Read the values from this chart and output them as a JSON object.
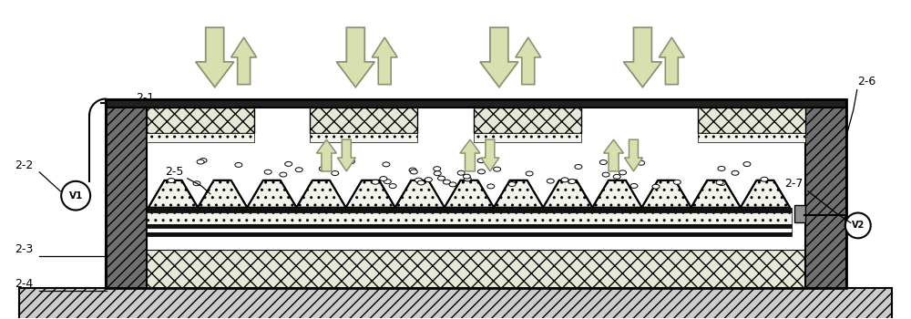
{
  "bg_color": "#ffffff",
  "fig_width": 10.0,
  "fig_height": 3.5,
  "arrow_fill": "#d8e0b0",
  "arrow_edge": "#909070",
  "hatch_wall_color": "#606060",
  "cross_hatch_color": "#e8e8d8",
  "dot_fill_color": "#f4f4ec",
  "base_hatch_color": "#c8c8c8",
  "black": "#000000",
  "white": "#ffffff",
  "dark_strip": "#1a1a1a",
  "gray_contact": "#888888",
  "label_fs": 9
}
